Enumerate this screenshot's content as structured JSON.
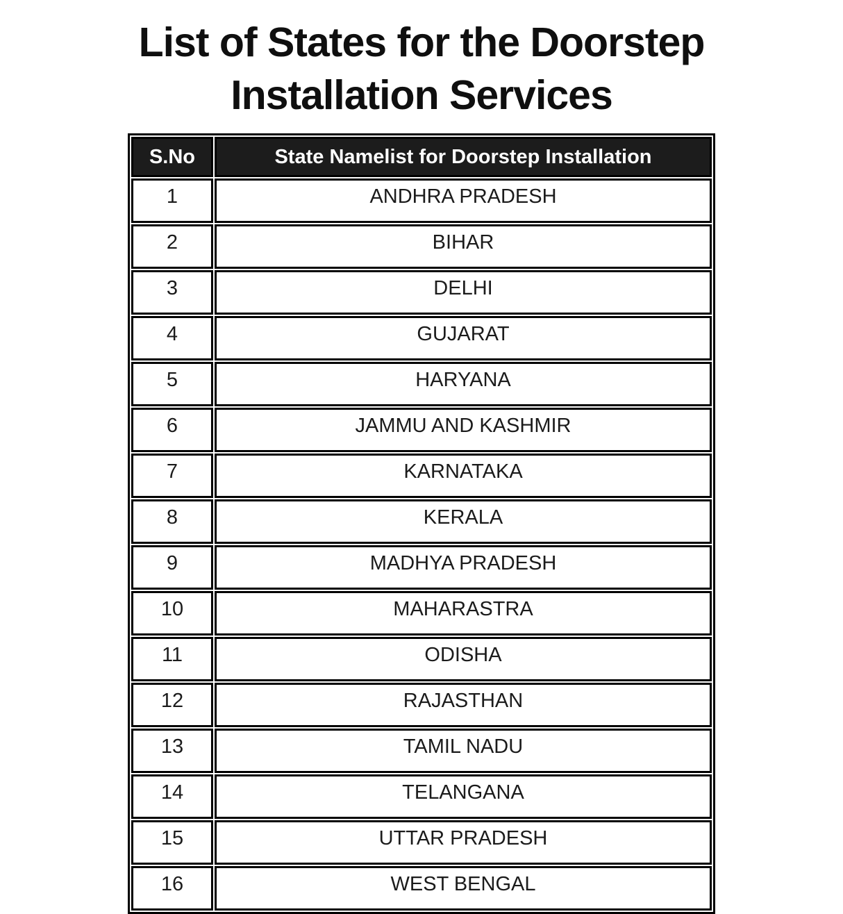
{
  "title": {
    "line1": "List of States for the Doorstep",
    "line2": "Installation Services"
  },
  "table": {
    "headers": {
      "sno": "S.No",
      "state": "State Namelist for Doorstep Installation"
    },
    "rows": [
      {
        "sno": "1",
        "state": "ANDHRA PRADESH"
      },
      {
        "sno": "2",
        "state": "BIHAR"
      },
      {
        "sno": "3",
        "state": "DELHI"
      },
      {
        "sno": "4",
        "state": "GUJARAT"
      },
      {
        "sno": "5",
        "state": "HARYANA"
      },
      {
        "sno": "6",
        "state": "JAMMU AND KASHMIR"
      },
      {
        "sno": "7",
        "state": "KARNATAKA"
      },
      {
        "sno": "8",
        "state": "KERALA"
      },
      {
        "sno": "9",
        "state": "MADHYA PRADESH"
      },
      {
        "sno": "10",
        "state": "MAHARASTRA"
      },
      {
        "sno": "11",
        "state": "ODISHA"
      },
      {
        "sno": "12",
        "state": "RAJASTHAN"
      },
      {
        "sno": "13",
        "state": "TAMIL NADU"
      },
      {
        "sno": "14",
        "state": "TELANGANA"
      },
      {
        "sno": "15",
        "state": "UTTAR PRADESH"
      },
      {
        "sno": "16",
        "state": "WEST BENGAL"
      }
    ]
  },
  "colors": {
    "page_bg": "#ffffff",
    "header_bg": "#1c1c1c",
    "header_text": "#ffffff",
    "border": "#000000",
    "cell_text": "#1b1b1b"
  }
}
